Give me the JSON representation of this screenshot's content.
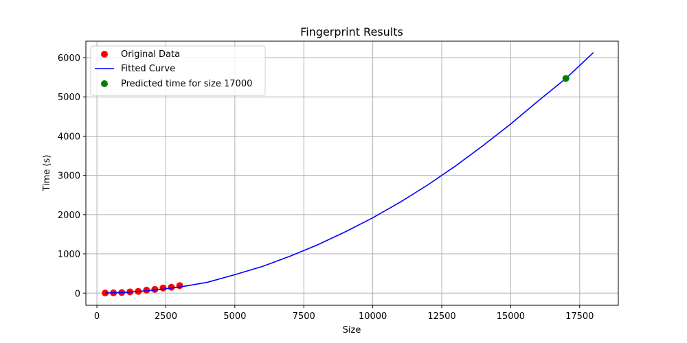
{
  "chart_data": {
    "type": "scatter",
    "title": "Fingerprint Results",
    "xlabel": "Size",
    "ylabel": "Time (s)",
    "xlim": [
      -400,
      18900
    ],
    "ylim": [
      -310,
      6420
    ],
    "xticks": [
      0,
      2500,
      5000,
      7500,
      10000,
      12500,
      15000,
      17500
    ],
    "yticks": [
      0,
      1000,
      2000,
      3000,
      4000,
      5000,
      6000
    ],
    "grid": true,
    "legend_position": "top-left",
    "series": [
      {
        "name": "Original Data",
        "kind": "scatter",
        "color": "#ff0000",
        "points": [
          {
            "x": 300,
            "y": 2
          },
          {
            "x": 600,
            "y": 6
          },
          {
            "x": 900,
            "y": 14
          },
          {
            "x": 1200,
            "y": 30
          },
          {
            "x": 1500,
            "y": 45
          },
          {
            "x": 1800,
            "y": 75
          },
          {
            "x": 2100,
            "y": 95
          },
          {
            "x": 2400,
            "y": 130
          },
          {
            "x": 2700,
            "y": 150
          },
          {
            "x": 3000,
            "y": 190
          }
        ]
      },
      {
        "name": "Fitted Curve",
        "kind": "line",
        "color": "#0000ff",
        "x": [
          300,
          1000,
          2000,
          3000,
          4000,
          5000,
          6000,
          7000,
          8000,
          9000,
          10000,
          11000,
          12000,
          13000,
          14000,
          15000,
          16000,
          17000,
          18000
        ],
        "y": [
          1,
          17,
          69,
          155,
          275,
          470,
          680,
          940,
          1230,
          1560,
          1920,
          2320,
          2760,
          3240,
          3760,
          4310,
          4900,
          5470,
          6130
        ]
      },
      {
        "name": "Predicted time for size 17000",
        "kind": "scatter",
        "color": "#008000",
        "points": [
          {
            "x": 17000,
            "y": 5470
          }
        ]
      }
    ]
  }
}
